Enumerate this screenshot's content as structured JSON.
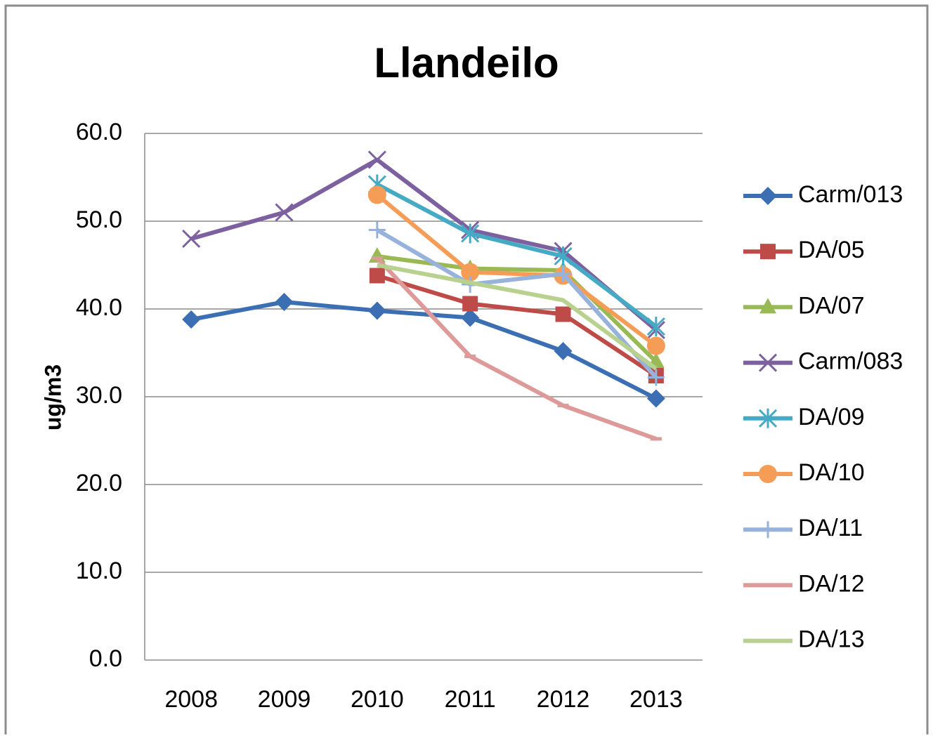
{
  "chart_data": {
    "type": "line",
    "title": "Llandeilo",
    "y_label": "ug/m3",
    "categories": [
      "2008",
      "2009",
      "2010",
      "2011",
      "2012",
      "2013"
    ],
    "ylim": [
      0,
      60
    ],
    "yticks": [
      {
        "value": 0,
        "label": "0.0"
      },
      {
        "value": 10,
        "label": "10.0"
      },
      {
        "value": 20,
        "label": "20.0"
      },
      {
        "value": 30,
        "label": "30.0"
      },
      {
        "value": 40,
        "label": "40.0"
      },
      {
        "value": 50,
        "label": "50.0"
      },
      {
        "value": 60,
        "label": "60.0"
      }
    ],
    "grid": true,
    "legend": "right",
    "series": [
      {
        "name": "Carm/013",
        "color": "#3c6eb4",
        "marker": "diamond",
        "values": [
          38.8,
          40.8,
          39.8,
          39.0,
          35.2,
          29.8
        ]
      },
      {
        "name": "DA/05",
        "color": "#be4b48",
        "marker": "square",
        "values": [
          null,
          null,
          43.8,
          40.6,
          39.4,
          32.4
        ]
      },
      {
        "name": "DA/07",
        "color": "#98b954",
        "marker": "triangle",
        "values": [
          null,
          null,
          46.0,
          44.6,
          44.4,
          34.0
        ]
      },
      {
        "name": "Carm/083",
        "color": "#7d60a0",
        "marker": "x",
        "values": [
          48.0,
          51.0,
          57.0,
          49.0,
          46.6,
          37.6
        ]
      },
      {
        "name": "DA/09",
        "color": "#46aac5",
        "marker": "star",
        "values": [
          null,
          null,
          54.2,
          48.6,
          46.0,
          38.0
        ]
      },
      {
        "name": "DA/10",
        "color": "#f59d56",
        "marker": "circle",
        "values": [
          null,
          null,
          53.0,
          44.2,
          43.8,
          35.8
        ]
      },
      {
        "name": "DA/11",
        "color": "#97b2db",
        "marker": "plus",
        "values": [
          null,
          null,
          49.0,
          42.8,
          44.0,
          32.2
        ]
      },
      {
        "name": "DA/12",
        "color": "#dd9a99",
        "marker": "dash",
        "values": [
          null,
          null,
          45.8,
          34.6,
          29.0,
          25.2
        ]
      },
      {
        "name": "DA/13",
        "color": "#b9d18e",
        "marker": "none",
        "values": [
          null,
          null,
          45.0,
          43.0,
          41.0,
          33.2
        ]
      }
    ]
  }
}
